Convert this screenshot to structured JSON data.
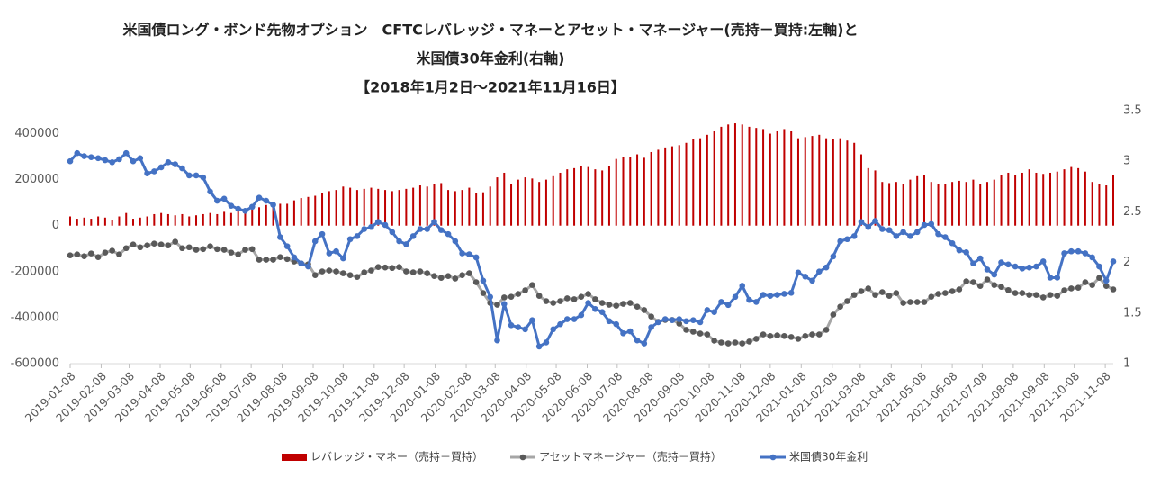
{
  "chart_data": {
    "type": "combo",
    "title": [
      "米国債ロング・ボンド先物オプション　CFTCレバレッジ・マネーとアセット・マネージャー(売持－買持:左軸)と",
      "米国債30年金利(右軸)",
      "【2018年1月2日～2021年11月16日】"
    ],
    "x": [
      "2019-01-08",
      "2019-01-15",
      "2019-01-22",
      "2019-01-29",
      "2019-02-05",
      "2019-02-12",
      "2019-02-19",
      "2019-02-26",
      "2019-03-05",
      "2019-03-12",
      "2019-03-19",
      "2019-03-26",
      "2019-04-02",
      "2019-04-09",
      "2019-04-16",
      "2019-04-23",
      "2019-04-30",
      "2019-05-07",
      "2019-05-14",
      "2019-05-21",
      "2019-05-28",
      "2019-06-04",
      "2019-06-11",
      "2019-06-18",
      "2019-06-25",
      "2019-07-02",
      "2019-07-09",
      "2019-07-16",
      "2019-07-23",
      "2019-07-30",
      "2019-08-06",
      "2019-08-13",
      "2019-08-20",
      "2019-08-27",
      "2019-09-03",
      "2019-09-10",
      "2019-09-17",
      "2019-09-24",
      "2019-10-01",
      "2019-10-08",
      "2019-10-15",
      "2019-10-22",
      "2019-10-29",
      "2019-11-05",
      "2019-11-12",
      "2019-11-19",
      "2019-11-26",
      "2019-12-03",
      "2019-12-10",
      "2019-12-17",
      "2019-12-24",
      "2019-12-31",
      "2020-01-07",
      "2020-01-14",
      "2020-01-21",
      "2020-01-28",
      "2020-02-04",
      "2020-02-11",
      "2020-02-18",
      "2020-02-25",
      "2020-03-03",
      "2020-03-10",
      "2020-03-17",
      "2020-03-24",
      "2020-03-31",
      "2020-04-07",
      "2020-04-14",
      "2020-04-21",
      "2020-04-28",
      "2020-05-05",
      "2020-05-12",
      "2020-05-19",
      "2020-05-26",
      "2020-06-02",
      "2020-06-09",
      "2020-06-16",
      "2020-06-23",
      "2020-06-30",
      "2020-07-07",
      "2020-07-14",
      "2020-07-21",
      "2020-07-28",
      "2020-08-04",
      "2020-08-11",
      "2020-08-18",
      "2020-08-25",
      "2020-09-01",
      "2020-09-08",
      "2020-09-15",
      "2020-09-22",
      "2020-09-29",
      "2020-10-06",
      "2020-10-13",
      "2020-10-20",
      "2020-10-27",
      "2020-11-03",
      "2020-11-10",
      "2020-11-17",
      "2020-11-24",
      "2020-12-01",
      "2020-12-08",
      "2020-12-15",
      "2020-12-22",
      "2020-12-29",
      "2021-01-05",
      "2021-01-12",
      "2021-01-19",
      "2021-01-26",
      "2021-02-02",
      "2021-02-09",
      "2021-02-16",
      "2021-02-23",
      "2021-03-02",
      "2021-03-09",
      "2021-03-16",
      "2021-03-23",
      "2021-03-30",
      "2021-04-06",
      "2021-04-13",
      "2021-04-20",
      "2021-04-27",
      "2021-05-04",
      "2021-05-11",
      "2021-05-18",
      "2021-05-25",
      "2021-06-01",
      "2021-06-08",
      "2021-06-15",
      "2021-06-22",
      "2021-06-29",
      "2021-07-06",
      "2021-07-13",
      "2021-07-20",
      "2021-07-27",
      "2021-08-03",
      "2021-08-10",
      "2021-08-17",
      "2021-08-24",
      "2021-08-31",
      "2021-09-07",
      "2021-09-14",
      "2021-09-21",
      "2021-09-28",
      "2021-10-05",
      "2021-10-12",
      "2021-10-19",
      "2021-10-26",
      "2021-11-02",
      "2021-11-09",
      "2021-11-16"
    ],
    "xlim": [
      "2019-01-08",
      "2021-11-16"
    ],
    "xticks": [
      "2019-01-08",
      "2019-02-08",
      "2019-03-08",
      "2019-04-08",
      "2019-05-08",
      "2019-06-08",
      "2019-07-08",
      "2019-08-08",
      "2019-09-08",
      "2019-10-08",
      "2019-11-08",
      "2019-12-08",
      "2020-01-08",
      "2020-02-08",
      "2020-03-08",
      "2020-04-08",
      "2020-05-08",
      "2020-06-08",
      "2020-07-08",
      "2020-08-08",
      "2020-09-08",
      "2020-10-08",
      "2020-11-08",
      "2020-12-08",
      "2021-01-08",
      "2021-02-08",
      "2021-03-08",
      "2021-04-08",
      "2021-05-08",
      "2021-06-08",
      "2021-07-08",
      "2021-08-08",
      "2021-09-08",
      "2021-10-08",
      "2021-11-08"
    ],
    "ylim": [
      -600000,
      500000
    ],
    "yticks": [
      -600000,
      -400000,
      -200000,
      0,
      200000,
      400000
    ],
    "y2lim": [
      1,
      3.5
    ],
    "y2ticks": [
      1,
      1.5,
      2,
      2.5,
      3,
      3.5
    ],
    "grid": false,
    "legend": "bottom",
    "series": [
      {
        "name": "レバレッジ・マネー（売持－買持）",
        "type": "bar",
        "color": "#c00000",
        "values": [
          40000,
          30000,
          35000,
          30000,
          40000,
          35000,
          25000,
          40000,
          55000,
          30000,
          35000,
          40000,
          50000,
          55000,
          50000,
          45000,
          50000,
          40000,
          45000,
          50000,
          55000,
          50000,
          60000,
          55000,
          70000,
          60000,
          75000,
          80000,
          90000,
          100000,
          95000,
          95000,
          110000,
          120000,
          125000,
          130000,
          140000,
          150000,
          155000,
          170000,
          165000,
          155000,
          160000,
          165000,
          160000,
          155000,
          150000,
          155000,
          160000,
          165000,
          175000,
          170000,
          180000,
          185000,
          155000,
          150000,
          155000,
          165000,
          140000,
          145000,
          170000,
          210000,
          230000,
          180000,
          200000,
          210000,
          205000,
          190000,
          200000,
          215000,
          230000,
          245000,
          250000,
          260000,
          255000,
          245000,
          240000,
          260000,
          290000,
          300000,
          300000,
          310000,
          295000,
          320000,
          330000,
          340000,
          345000,
          350000,
          360000,
          375000,
          380000,
          395000,
          410000,
          430000,
          440000,
          445000,
          440000,
          430000,
          425000,
          420000,
          400000,
          410000,
          420000,
          410000,
          380000,
          385000,
          390000,
          395000,
          380000,
          375000,
          380000,
          370000,
          360000,
          310000,
          250000,
          240000,
          190000,
          185000,
          190000,
          180000,
          200000,
          215000,
          220000,
          190000,
          180000,
          180000,
          190000,
          195000,
          190000,
          200000,
          180000,
          190000,
          200000,
          220000,
          230000,
          220000,
          230000,
          245000,
          230000,
          225000,
          230000,
          235000,
          245000,
          255000,
          250000,
          235000,
          190000,
          180000,
          175000,
          220000
        ]
      },
      {
        "name": "アセットマネージャー（売持－買持）",
        "type": "line",
        "color": "#a6a6a6",
        "marker_color": "#595959",
        "values": [
          -129000,
          -125000,
          -133000,
          -121000,
          -137000,
          -117000,
          -109000,
          -125000,
          -98000,
          -82000,
          -94000,
          -86000,
          -78000,
          -82000,
          -86000,
          -70000,
          -98000,
          -94000,
          -105000,
          -102000,
          -90000,
          -102000,
          -105000,
          -117000,
          -125000,
          -105000,
          -102000,
          -148000,
          -148000,
          -148000,
          -137000,
          -145000,
          -156000,
          -164000,
          -168000,
          -215000,
          -199000,
          -195000,
          -199000,
          -207000,
          -215000,
          -223000,
          -203000,
          -195000,
          -180000,
          -182000,
          -184000,
          -180000,
          -199000,
          -203000,
          -199000,
          -207000,
          -219000,
          -227000,
          -219000,
          -230000,
          -215000,
          -207000,
          -246000,
          -293000,
          -336000,
          -344000,
          -312000,
          -309000,
          -297000,
          -281000,
          -258000,
          -305000,
          -328000,
          -336000,
          -328000,
          -316000,
          -320000,
          -309000,
          -297000,
          -320000,
          -336000,
          -344000,
          -348000,
          -340000,
          -336000,
          -352000,
          -367000,
          -395000,
          -418000,
          -410000,
          -410000,
          -426000,
          -453000,
          -461000,
          -469000,
          -473000,
          -500000,
          -508000,
          -512000,
          -508000,
          -512000,
          -504000,
          -492000,
          -473000,
          -480000,
          -477000,
          -480000,
          -484000,
          -492000,
          -480000,
          -473000,
          -473000,
          -453000,
          -387000,
          -352000,
          -328000,
          -301000,
          -285000,
          -273000,
          -301000,
          -289000,
          -305000,
          -293000,
          -336000,
          -332000,
          -332000,
          -332000,
          -309000,
          -297000,
          -293000,
          -285000,
          -277000,
          -242000,
          -246000,
          -262000,
          -234000,
          -258000,
          -266000,
          -280000,
          -293000,
          -293000,
          -301000,
          -301000,
          -312000,
          -301000,
          -305000,
          -281000,
          -273000,
          -270000,
          -246000,
          -258000,
          -227000,
          -262000,
          -277000
        ]
      },
      {
        "name": "米国債30年金利",
        "type": "line",
        "axis": "y2",
        "color": "#4472c4",
        "marker_color": "#4472c4",
        "values": [
          3.0,
          3.08,
          3.05,
          3.04,
          3.03,
          3.01,
          2.99,
          3.02,
          3.08,
          3.0,
          3.03,
          2.88,
          2.9,
          2.94,
          2.99,
          2.97,
          2.93,
          2.86,
          2.86,
          2.84,
          2.7,
          2.61,
          2.63,
          2.56,
          2.53,
          2.51,
          2.55,
          2.64,
          2.61,
          2.57,
          2.25,
          2.16,
          2.05,
          1.99,
          1.96,
          2.21,
          2.28,
          2.09,
          2.11,
          2.04,
          2.23,
          2.26,
          2.33,
          2.35,
          2.4,
          2.37,
          2.3,
          2.21,
          2.18,
          2.26,
          2.33,
          2.33,
          2.4,
          2.32,
          2.28,
          2.21,
          2.09,
          2.08,
          2.05,
          1.82,
          1.66,
          1.23,
          1.59,
          1.38,
          1.36,
          1.34,
          1.43,
          1.17,
          1.21,
          1.34,
          1.39,
          1.44,
          1.44,
          1.48,
          1.6,
          1.54,
          1.51,
          1.42,
          1.39,
          1.3,
          1.32,
          1.23,
          1.2,
          1.36,
          1.41,
          1.44,
          1.43,
          1.44,
          1.42,
          1.43,
          1.41,
          1.53,
          1.51,
          1.61,
          1.58,
          1.66,
          1.77,
          1.63,
          1.61,
          1.68,
          1.67,
          1.68,
          1.69,
          1.7,
          1.9,
          1.86,
          1.82,
          1.91,
          1.95,
          2.06,
          2.21,
          2.23,
          2.26,
          2.4,
          2.35,
          2.41,
          2.33,
          2.32,
          2.26,
          2.3,
          2.26,
          2.3,
          2.37,
          2.38,
          2.28,
          2.25,
          2.19,
          2.12,
          2.1,
          1.99,
          2.04,
          1.93,
          1.88,
          2.0,
          1.98,
          1.96,
          1.94,
          1.95,
          1.96,
          2.01,
          1.85,
          1.85,
          2.09,
          2.11,
          2.11,
          2.09,
          2.05,
          1.96,
          1.82,
          2.01
        ]
      }
    ]
  }
}
